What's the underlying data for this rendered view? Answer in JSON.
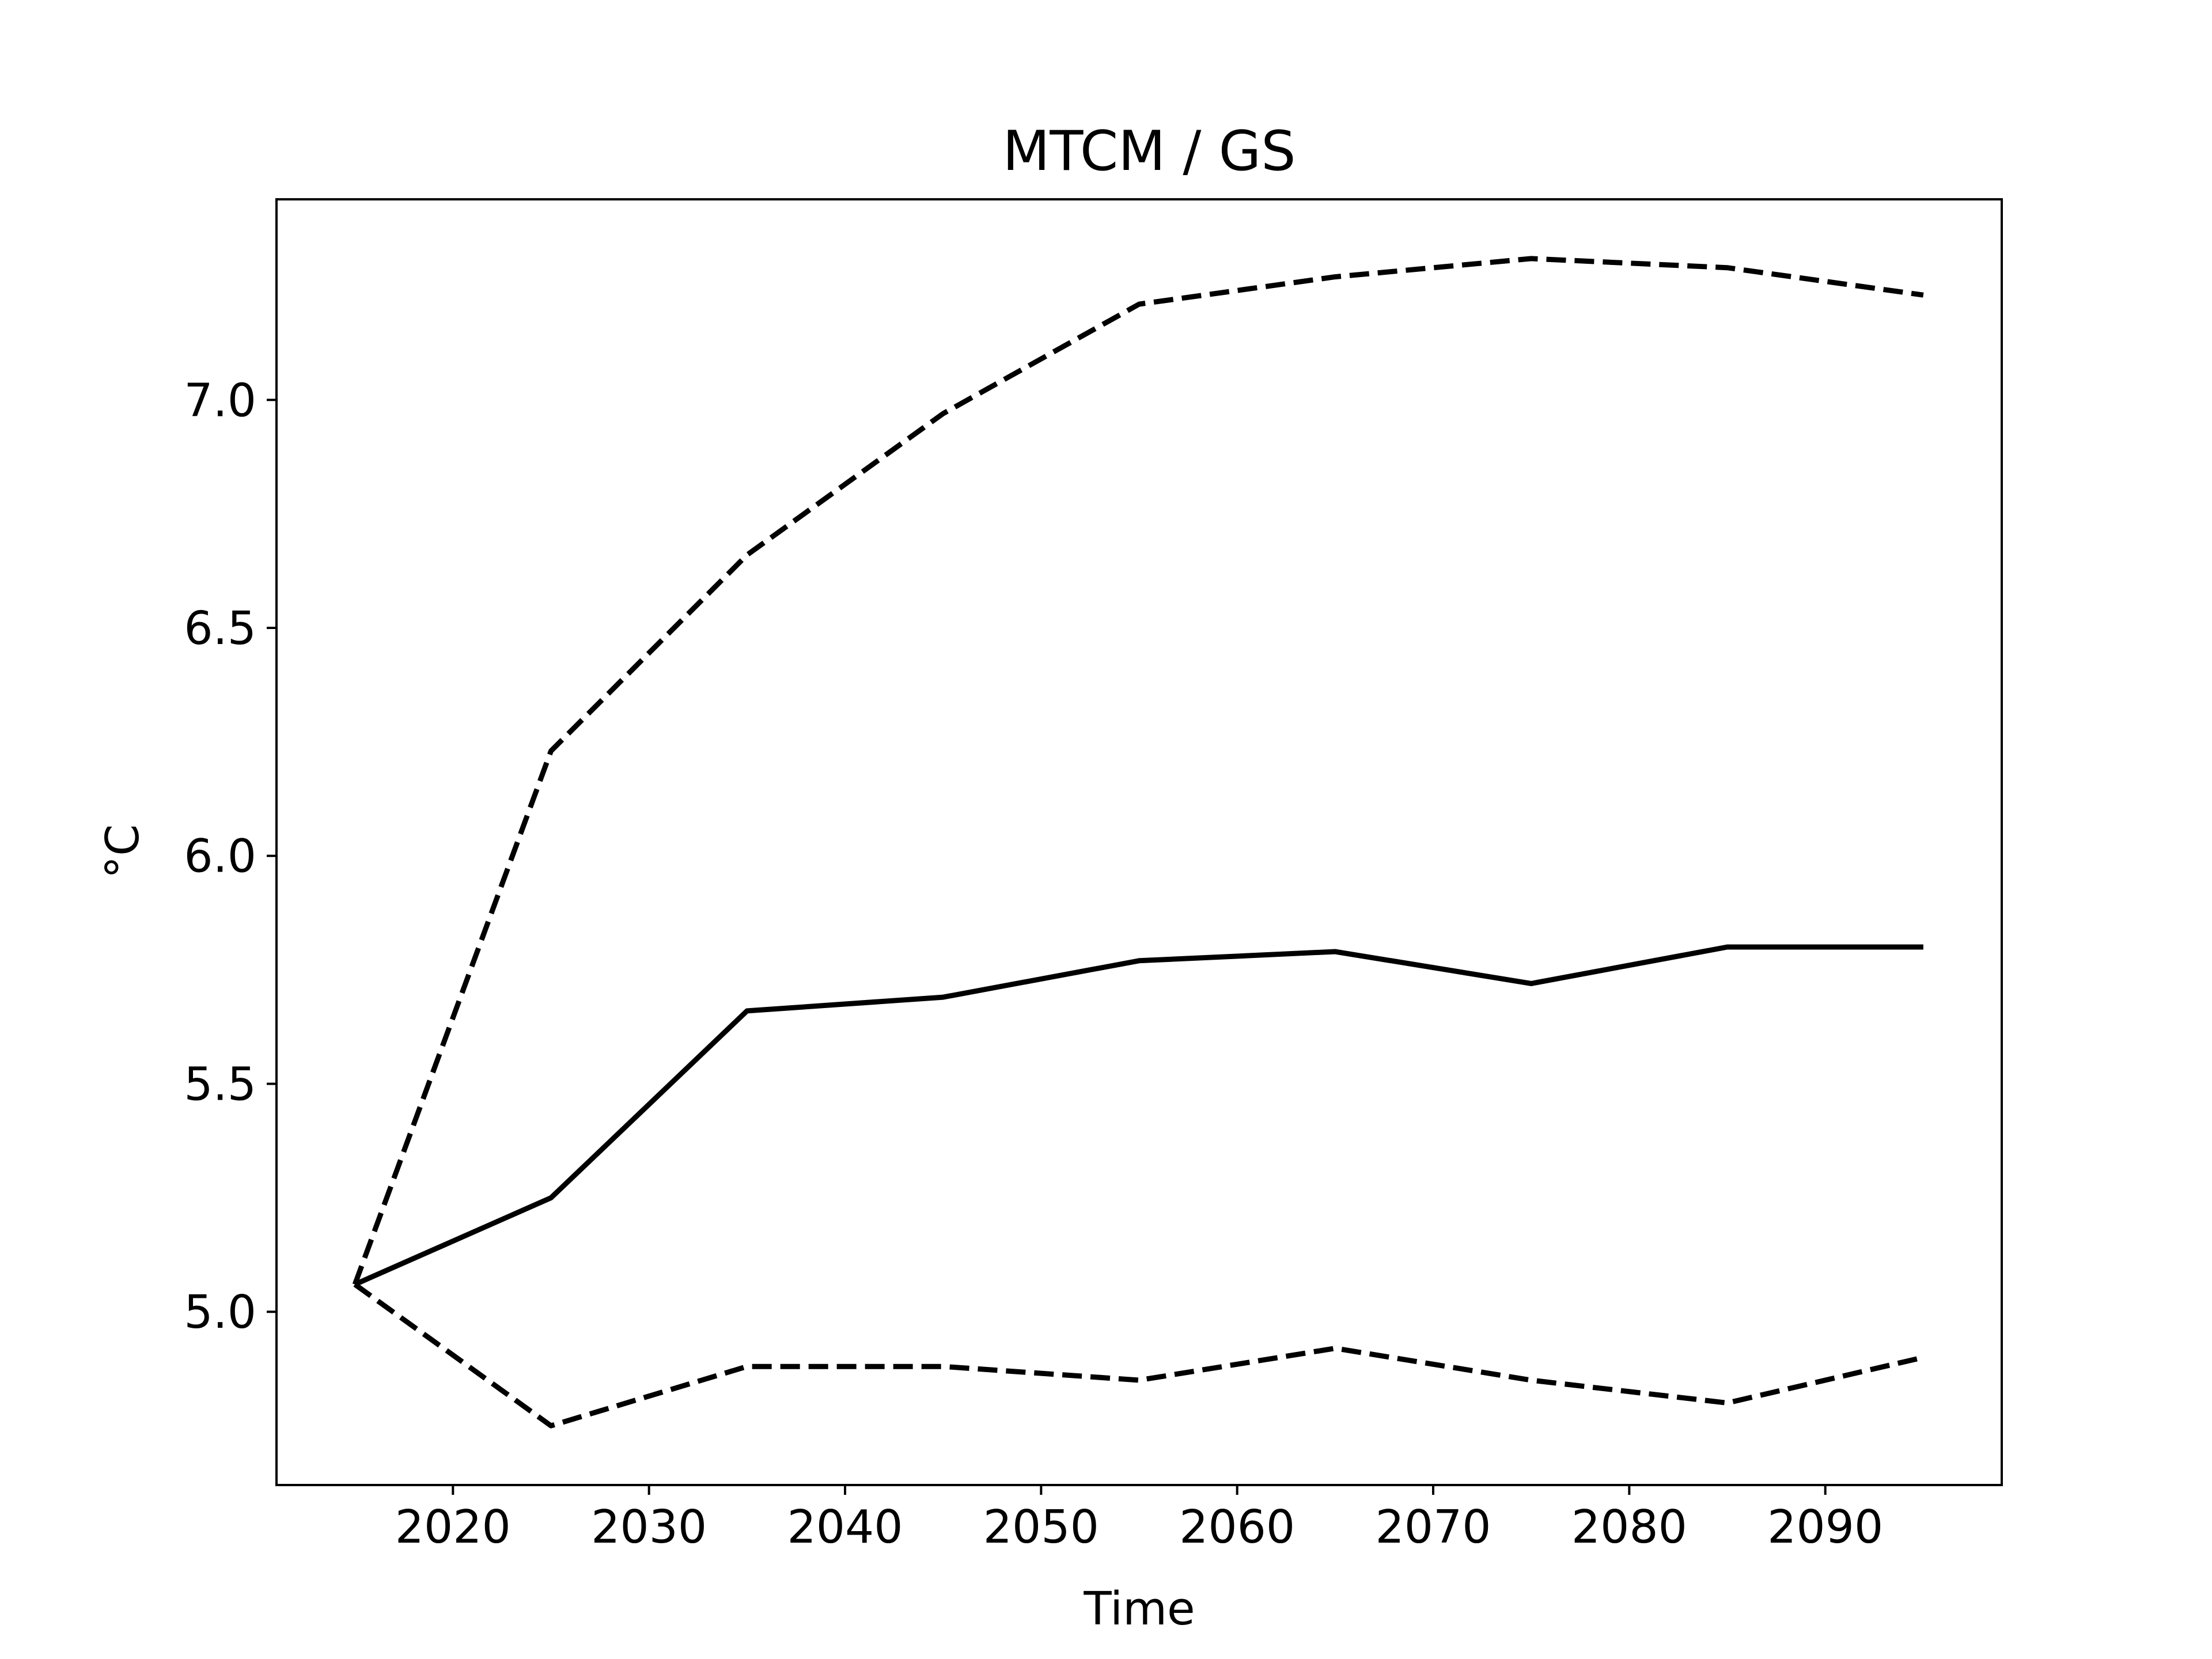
{
  "chart_data": {
    "type": "line",
    "title": "MTCM / GS",
    "xlabel": "Time",
    "ylabel": "°C",
    "xlim": [
      2011,
      2099
    ],
    "ylim": [
      4.62,
      7.44
    ],
    "x_ticks": [
      2020,
      2030,
      2040,
      2050,
      2060,
      2070,
      2080,
      2090
    ],
    "x_tick_labels": [
      "2020",
      "2030",
      "2040",
      "2050",
      "2060",
      "2070",
      "2080",
      "2090"
    ],
    "y_ticks": [
      5.0,
      5.5,
      6.0,
      6.5,
      7.0
    ],
    "y_tick_labels": [
      "5.0",
      "5.5",
      "6.0",
      "6.5",
      "7.0"
    ],
    "grid": false,
    "legend": "none",
    "x": [
      2015,
      2025,
      2035,
      2045,
      2055,
      2065,
      2075,
      2085,
      2095
    ],
    "series": [
      {
        "style": "dashed",
        "color": "#000000",
        "values": [
          5.06,
          6.23,
          6.66,
          6.97,
          7.21,
          7.27,
          7.31,
          7.29,
          7.23
        ]
      },
      {
        "style": "solid",
        "color": "#000000",
        "values": [
          5.06,
          5.25,
          5.66,
          5.69,
          5.77,
          5.79,
          5.72,
          5.8,
          5.8
        ]
      },
      {
        "style": "dashed",
        "color": "#000000",
        "values": [
          5.06,
          4.75,
          4.88,
          4.88,
          4.85,
          4.92,
          4.85,
          4.8,
          4.9
        ]
      }
    ]
  }
}
